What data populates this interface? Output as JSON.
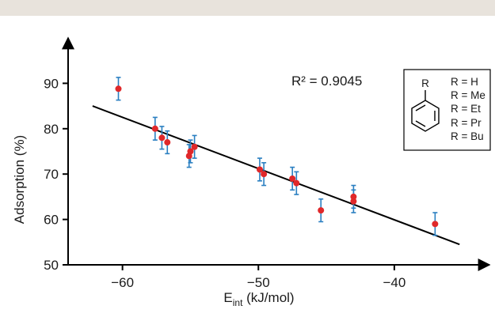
{
  "chart_data": {
    "type": "scatter",
    "xlabel": "E",
    "xlabel_subscript": "int",
    "xlabel_unit": " (kJ/mol)",
    "ylabel": "Adsorption (%)",
    "xlim": [
      -64,
      -33
    ],
    "ylim": [
      50,
      100
    ],
    "x_ticks": [
      -60,
      -50,
      -40
    ],
    "x_tick_labels": [
      "−60",
      "−50",
      "−40"
    ],
    "y_ticks": [
      50,
      60,
      70,
      80,
      90
    ],
    "y_tick_labels": [
      "50",
      "60",
      "70",
      "80",
      "90"
    ],
    "grid": false,
    "points": [
      {
        "x": -60.3,
        "y": 88.8,
        "err": 2.5
      },
      {
        "x": -57.6,
        "y": 80.0,
        "err": 2.5
      },
      {
        "x": -57.1,
        "y": 78.0,
        "err": 2.5
      },
      {
        "x": -56.7,
        "y": 77.0,
        "err": 2.5
      },
      {
        "x": -55.1,
        "y": 74.0,
        "err": 2.5
      },
      {
        "x": -55.0,
        "y": 75.0,
        "err": 2.5
      },
      {
        "x": -54.7,
        "y": 76.0,
        "err": 2.5
      },
      {
        "x": -49.9,
        "y": 71.0,
        "err": 2.5
      },
      {
        "x": -49.6,
        "y": 70.0,
        "err": 2.5
      },
      {
        "x": -47.5,
        "y": 69.0,
        "err": 2.5
      },
      {
        "x": -47.2,
        "y": 68.0,
        "err": 2.5
      },
      {
        "x": -45.4,
        "y": 62.0,
        "err": 2.5
      },
      {
        "x": -43.0,
        "y": 64.0,
        "err": 2.5
      },
      {
        "x": -43.0,
        "y": 65.0,
        "err": 2.5
      },
      {
        "x": -37.0,
        "y": 59.0,
        "err": 2.5
      }
    ],
    "fit_line": {
      "x": [
        -62.2,
        -35.2
      ],
      "y": [
        85.0,
        54.5
      ]
    },
    "r_squared_label": "R² = 0.9045",
    "legend": {
      "substituent_label": "R",
      "entries": [
        "R = H",
        "R = Me",
        "R = Et",
        "R = Pr",
        "R = Bu"
      ]
    },
    "colors": {
      "point": "#e0282a",
      "error_bar": "#2a7fc1",
      "line": "#000000",
      "axis": "#000000"
    }
  }
}
